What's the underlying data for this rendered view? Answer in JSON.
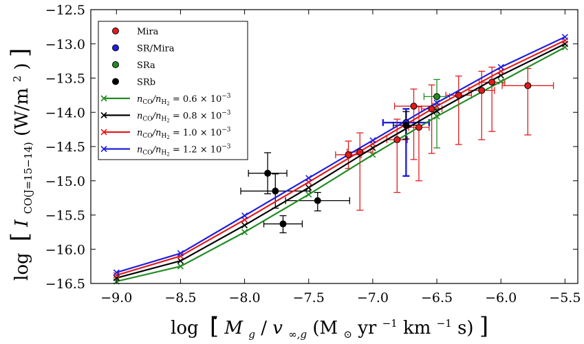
{
  "chart_data": {
    "type": "scatter",
    "xlabel": "log [Ṁg/v∞,g (M⊙ yr⁻¹ km⁻¹ s)]",
    "ylabel": "log [I CO(J=15−14) (W/m²)]",
    "xlim": [
      -9.2,
      -5.4
    ],
    "ylim": [
      -16.5,
      -12.5
    ],
    "xticks": [
      -9.0,
      -8.5,
      -8.0,
      -7.5,
      -7.0,
      -6.5,
      -6.0,
      -5.5
    ],
    "yticks": [
      -16.5,
      -16.0,
      -15.5,
      -15.0,
      -14.5,
      -14.0,
      -13.5,
      -13.0,
      -12.5
    ],
    "xtick_labels": [
      "−9.0",
      "−8.5",
      "−8.0",
      "−7.5",
      "−7.0",
      "−6.5",
      "−6.0",
      "−5.5"
    ],
    "ytick_labels": [
      "−16.5",
      "−16.0",
      "−15.5",
      "−15.0",
      "−14.5",
      "−14.0",
      "−13.5",
      "−13.0",
      "−12.5"
    ],
    "legend_position": "upper-left",
    "model_x": [
      -9.0,
      -8.5,
      -8.0,
      -7.5,
      -7.0,
      -6.5,
      -6.0,
      -5.5
    ],
    "model_series": [
      {
        "name": "n_CO/n_H2 = 0.6 × 10⁻³",
        "label_main": "n",
        "label_ratio": "CO",
        "label_den": "/n",
        "label_h": "H",
        "label_h2": "2",
        "label_value": " = 0.6 × 10",
        "label_exp": "−3",
        "color": "#228B22",
        "y": [
          -16.47,
          -16.25,
          -15.75,
          -15.2,
          -14.62,
          -14.06,
          -13.55,
          -13.05
        ]
      },
      {
        "name": "n_CO/n_H2 = 0.8 × 10⁻³",
        "label_main": "n",
        "label_ratio": "CO",
        "label_den": "/n",
        "label_h": "H",
        "label_h2": "2",
        "label_value": " = 0.8 × 10",
        "label_exp": "−3",
        "color": "#000000",
        "y": [
          -16.42,
          -16.17,
          -15.65,
          -15.1,
          -14.52,
          -13.98,
          -13.46,
          -13.0
        ]
      },
      {
        "name": "n_CO/n_H2 = 1.0 × 10⁻³",
        "label_main": "n",
        "label_ratio": "CO",
        "label_den": "/n",
        "label_h": "H",
        "label_h2": "2",
        "label_value": " = 1.0 × 10",
        "label_exp": "−3",
        "color": "#e31a1c",
        "y": [
          -16.38,
          -16.1,
          -15.57,
          -15.02,
          -14.46,
          -13.91,
          -13.4,
          -12.95
        ]
      },
      {
        "name": "n_CO/n_H2 = 1.2 × 10⁻³",
        "label_main": "n",
        "label_ratio": "CO",
        "label_den": "/n",
        "label_h": "H",
        "label_h2": "2",
        "label_value": " = 1.2 × 10",
        "label_exp": "−3",
        "color": "#1f1fe0",
        "y": [
          -16.34,
          -16.06,
          -15.51,
          -14.96,
          -14.41,
          -13.86,
          -13.34,
          -12.9
        ]
      }
    ],
    "observed_series": [
      {
        "name": "Mira",
        "color": "#e31a1c",
        "points": [
          {
            "x": -7.19,
            "y": -14.62,
            "xerr": 0.1,
            "yerr_lo": 0.2,
            "yerr_hi": 0.2
          },
          {
            "x": -7.1,
            "y": -14.58,
            "xerr": 0.1,
            "yerr_lo": 0.85,
            "yerr_hi": 0.28
          },
          {
            "x": -6.81,
            "y": -14.4,
            "xerr": 0.08,
            "yerr_lo": 0.77,
            "yerr_hi": 0.3
          },
          {
            "x": -6.68,
            "y": -13.91,
            "xerr": 0.15,
            "yerr_lo": 0.78,
            "yerr_hi": 0.25
          },
          {
            "x": -6.64,
            "y": -14.22,
            "xerr": 0.08,
            "yerr_lo": 0.78,
            "yerr_hi": 0.3
          },
          {
            "x": -6.54,
            "y": -13.95,
            "xerr": 0.08,
            "yerr_lo": 0.65,
            "yerr_hi": 0.35
          },
          {
            "x": -6.33,
            "y": -13.75,
            "xerr": 0.1,
            "yerr_lo": 0.72,
            "yerr_hi": 0.28
          },
          {
            "x": -6.15,
            "y": -13.68,
            "xerr": 0.1,
            "yerr_lo": 0.72,
            "yerr_hi": 0.28
          },
          {
            "x": -6.07,
            "y": -13.56,
            "xerr": 0.1,
            "yerr_lo": 0.72,
            "yerr_hi": 0.22
          },
          {
            "x": -5.79,
            "y": -13.61,
            "xerr": 0.2,
            "yerr_lo": 0.72,
            "yerr_hi": 0.25
          }
        ]
      },
      {
        "name": "SR/Mira",
        "color": "#1f1fe0",
        "points": [
          {
            "x": -6.74,
            "y": -14.15,
            "xerr": 0.18,
            "yerr_lo": 0.78,
            "yerr_hi": 0.2
          }
        ]
      },
      {
        "name": "SRa",
        "color": "#228B22",
        "points": [
          {
            "x": -6.5,
            "y": -13.77,
            "xerr": 0.1,
            "yerr_lo": 0.75,
            "yerr_hi": 0.25
          }
        ]
      },
      {
        "name": "SRb",
        "color": "#000000",
        "points": [
          {
            "x": -7.82,
            "y": -14.89,
            "xerr": 0.15,
            "yerr_lo": 0.3,
            "yerr_hi": 0.3
          },
          {
            "x": -7.76,
            "y": -15.15,
            "xerr": 0.27,
            "yerr_lo": 0.25,
            "yerr_hi": 0.25
          },
          {
            "x": -7.7,
            "y": -15.63,
            "xerr": 0.15,
            "yerr_lo": 0.13,
            "yerr_hi": 0.12
          },
          {
            "x": -7.43,
            "y": -15.29,
            "xerr": 0.25,
            "yerr_lo": 0.15,
            "yerr_hi": 0.12
          },
          {
            "x": -6.74,
            "y": -14.19,
            "xerr": 0.1,
            "yerr_lo": 0.2,
            "yerr_hi": 0.2
          }
        ]
      }
    ]
  },
  "axes": {
    "x_label_prefix": "log",
    "x_label_m": "M",
    "x_label_sub_g": "g",
    "x_label_slash": "/",
    "x_label_v": "v",
    "x_label_sub_inf": "∞,g",
    "x_label_units_open": " (M",
    "x_label_sun": "⊙",
    "x_label_units_mid": " yr",
    "x_label_exp1": "−1",
    "x_label_units_km": " km",
    "x_label_exp2": "−1",
    "x_label_units_s": " s)",
    "y_label_prefix": "log",
    "y_label_i": "I",
    "y_label_sub": "CO(J=15−14)",
    "y_label_units": " (W/m",
    "y_label_exp": "2",
    "y_label_close": ")"
  }
}
